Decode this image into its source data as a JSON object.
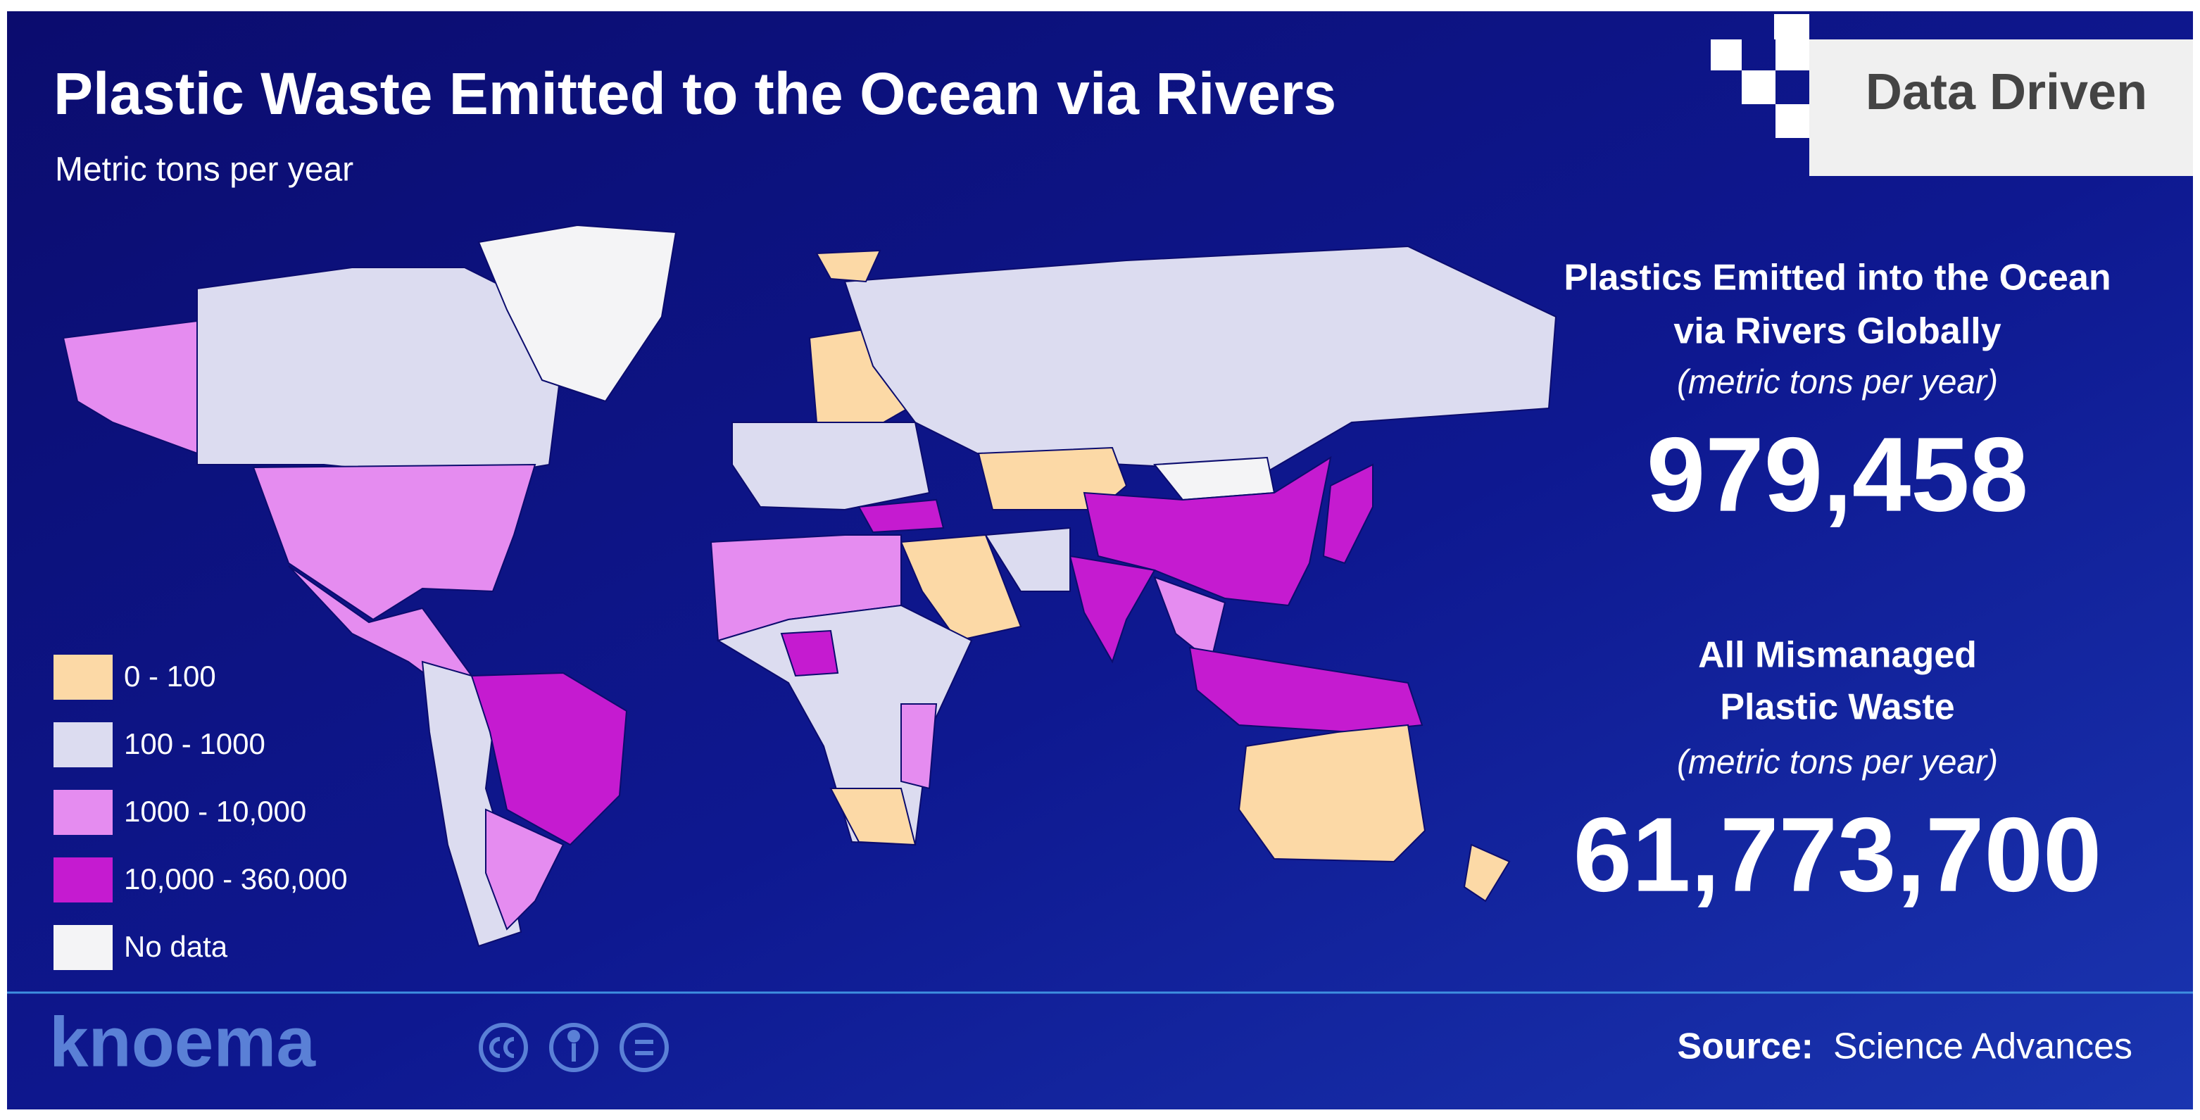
{
  "header": {
    "title": "Plastic Waste Emitted to the Ocean via Rivers",
    "subtitle": "Metric tons per year",
    "badge": "Data Driven"
  },
  "legend": [
    {
      "label": "0 - 100",
      "color": "#fcd9a6"
    },
    {
      "label": "100 - 1000",
      "color": "#dcdcf0"
    },
    {
      "label": "1000 - 10,000",
      "color": "#e58cf0"
    },
    {
      "label": "10,000 - 360,000",
      "color": "#c51bd0"
    },
    {
      "label": "No data",
      "color": "#f4f4f6"
    }
  ],
  "stats": [
    {
      "heading_lines": [
        "Plastics Emitted into the Ocean",
        "via Rivers Globally"
      ],
      "unit": "(metric tons per year)",
      "value": "979,458"
    },
    {
      "heading_lines": [
        "All Mismanaged",
        "Plastic Waste"
      ],
      "unit": "(metric tons per year)",
      "value": "61,773,700"
    }
  ],
  "footer": {
    "brand": "knoema",
    "source_label": "Source:",
    "source": "Science Advances"
  }
}
